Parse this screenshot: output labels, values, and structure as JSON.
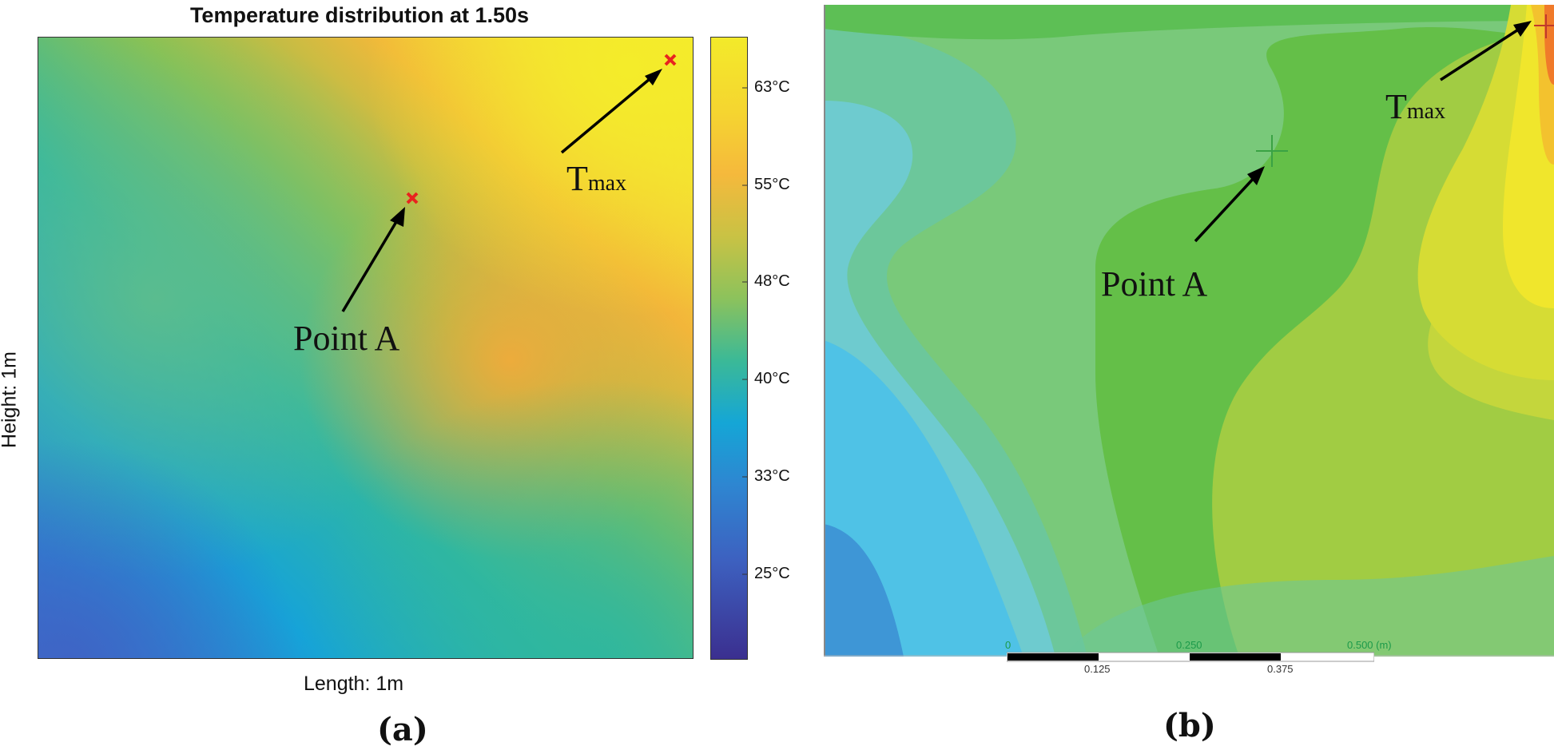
{
  "panel_a": {
    "title": "Temperature distribution at 1.50s",
    "ylabel": "Height: 1m",
    "xlabel": "Length: 1m",
    "colorbar_ticks": [
      "63°C",
      "55°C",
      "48°C",
      "40°C",
      "33°C",
      "25°C"
    ],
    "point_a_label": "Point A",
    "tmax_main": "T",
    "tmax_sub": "max",
    "marker_color": "#e8231f",
    "caption": "(a)"
  },
  "panel_b": {
    "point_a_label": "Point A",
    "tmax_main": "T",
    "tmax_sub": "max",
    "scale_labels_top": [
      "0",
      "0.250",
      "0.500 (m)"
    ],
    "scale_labels_bottom": [
      "0.125",
      "0.375"
    ],
    "scale_color": "#1c9a4a",
    "caption": "(b)"
  },
  "colors": {
    "colorbar_top": "#f2e82a",
    "colorbar_bottom": "#3c2f8e"
  }
}
